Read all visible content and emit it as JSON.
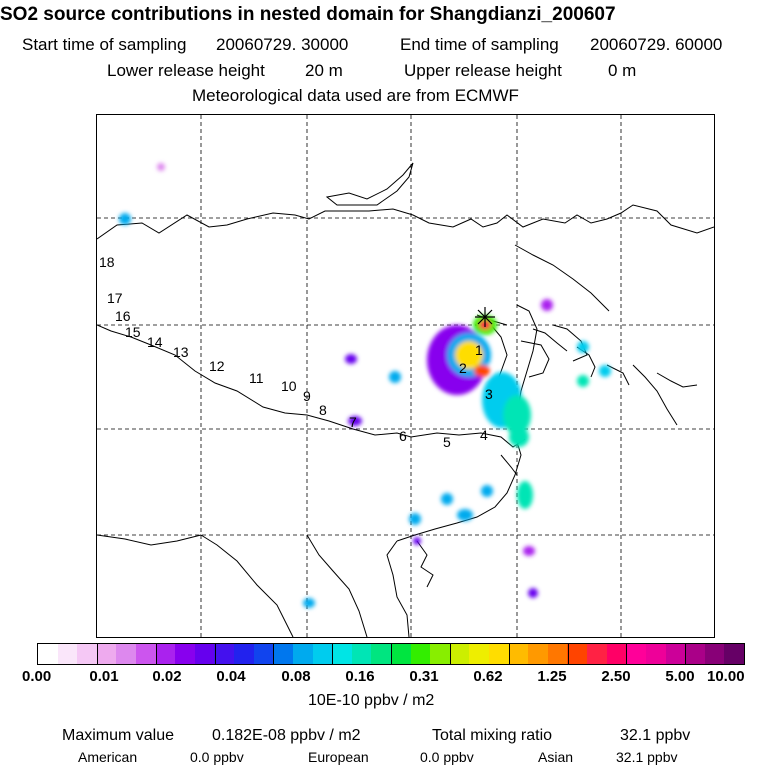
{
  "title": "SO2 source contributions in nested domain for Shangdianzi_200607",
  "header": {
    "start_label": "Start time of sampling",
    "start_value": "20060729. 30000",
    "end_label": "End time of sampling",
    "end_value": "20060729. 60000",
    "lower_label": "Lower release height",
    "lower_value": "20 m",
    "upper_label": "Upper release height",
    "upper_value": "0 m",
    "met_text": "Meteorological data used are from ECMWF"
  },
  "map": {
    "trajectory_labels": [
      "1",
      "2",
      "3",
      "4",
      "5",
      "6",
      "7",
      "8",
      "9",
      "10",
      "11",
      "12",
      "13",
      "14",
      "15",
      "16",
      "17",
      "18"
    ],
    "station_marker": "station-star-icon"
  },
  "legend": {
    "tick_labels": [
      "0.00",
      "0.01",
      "0.02",
      "0.04",
      "0.08",
      "0.16",
      "0.31",
      "0.62",
      "1.25",
      "2.50",
      "5.00",
      "10.00"
    ],
    "colors": [
      "#ffffff",
      "#fae6fa",
      "#f5c8f5",
      "#eeaaee",
      "#dd88ee",
      "#cc55ee",
      "#aa22ee",
      "#8800ee",
      "#6600ee",
      "#4411ee",
      "#2222ee",
      "#1144ee",
      "#0077ee",
      "#00aaee",
      "#00ccee",
      "#00e5e5",
      "#00e5b5",
      "#00e580",
      "#00e540",
      "#33ee00",
      "#88ee00",
      "#ccee00",
      "#eeee00",
      "#ffdd00",
      "#ffbb00",
      "#ff9900",
      "#ff7700",
      "#ff4400",
      "#ff2244",
      "#ff0066",
      "#ff0099",
      "#ee0099",
      "#cc0099",
      "#aa0088",
      "#880077",
      "#660066"
    ],
    "unit": "10E-10 ppbv / m2"
  },
  "footer": {
    "max_label": "Maximum value",
    "max_value": "0.182E-08 ppbv / m2",
    "total_label": "Total mixing ratio",
    "total_value": "32.1 ppbv",
    "american_label": "American",
    "american_value": "0.0 ppbv",
    "european_label": "European",
    "european_value": "0.0 ppbv",
    "asian_label": "Asian",
    "asian_value": "32.1 ppbv"
  }
}
